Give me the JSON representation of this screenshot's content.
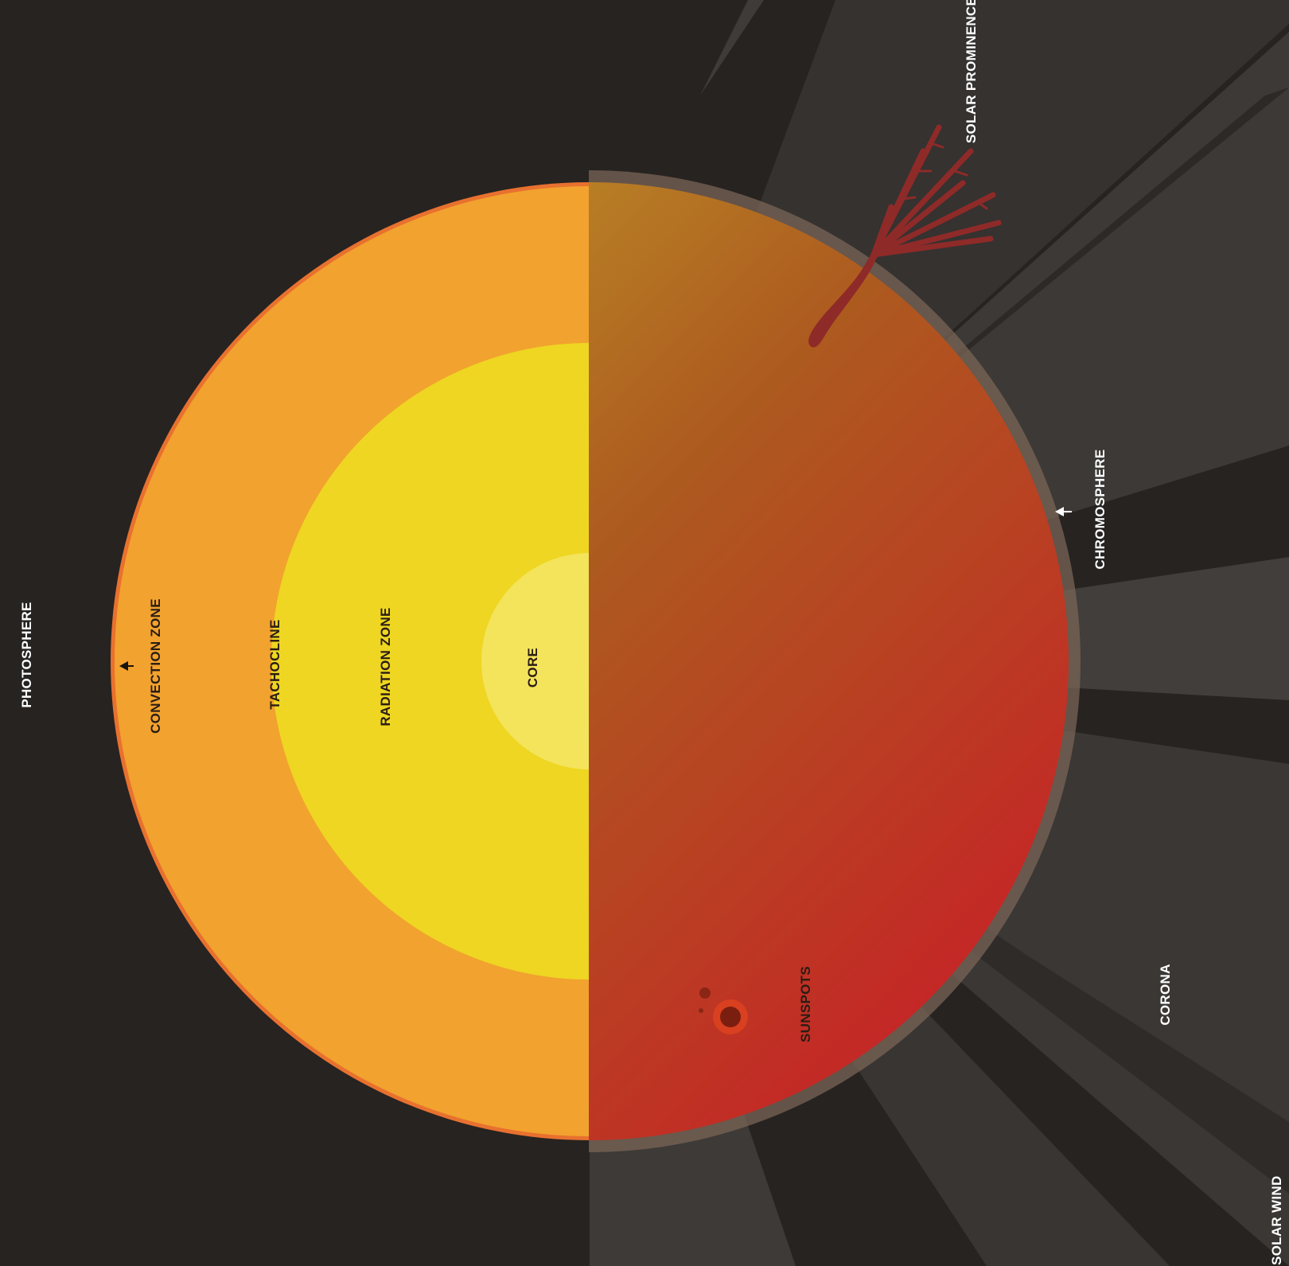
{
  "diagram": {
    "labels": {
      "photosphere": "PHOTOSPHERE",
      "convection_zone": "CONVECTION ZONE",
      "tachocline": "TACHOCLINE",
      "radiation_zone": "RADIATION ZONE",
      "core": "CORE",
      "sunspots": "SUNSPOTS",
      "corona": "CORONA",
      "chromosphere": "CHROMOSPHERE",
      "solar_prominence": "SOLAR PROMINENCE",
      "solar_wind": "SOLAR WIND"
    },
    "colors": {
      "background": "#262321",
      "convection_zone": "#f2a22e",
      "radiation_zone": "#eed622",
      "core": "#f4e45b",
      "photosphere_rim": "#e8712f",
      "surface_gradient_start": "#c2a52b",
      "surface_gradient_end": "#cc1a28",
      "chromosphere": "#7a6455",
      "corona_rays": "#3d3a37",
      "prominence": "#8e2a28",
      "label_light": "#ffffff",
      "label_dark": "#2a1d14"
    }
  }
}
